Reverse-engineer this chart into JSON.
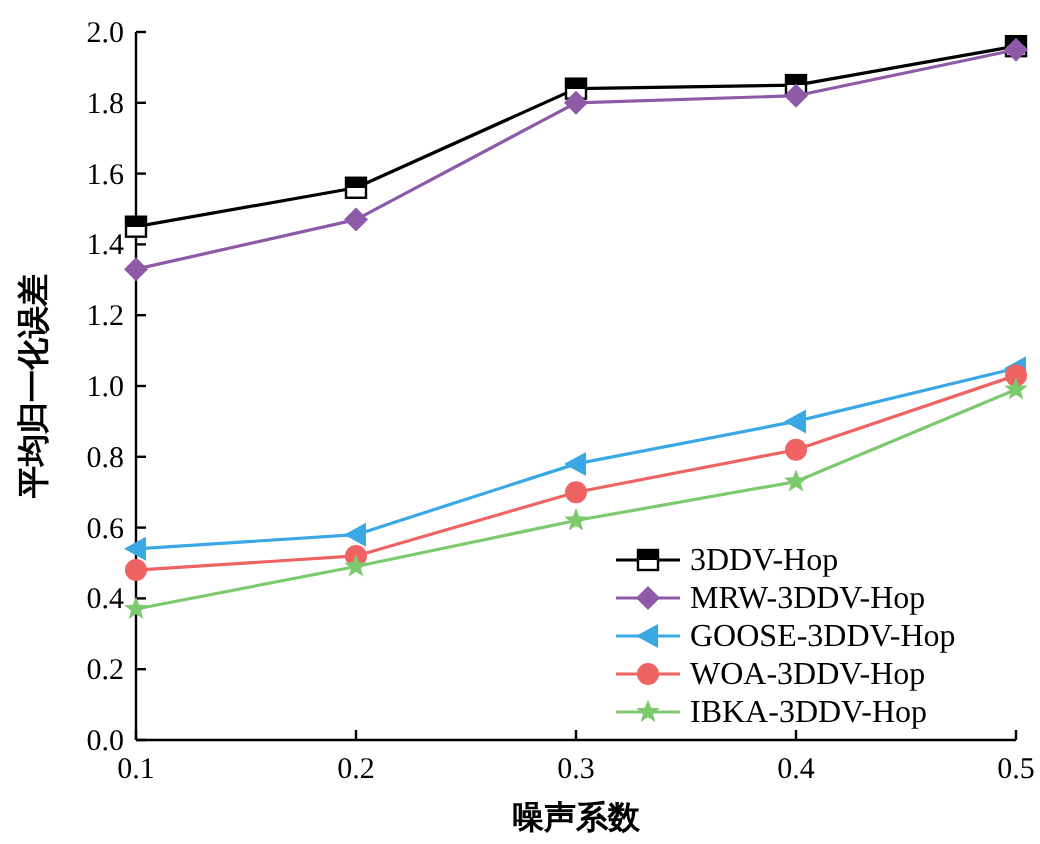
{
  "chart_data": {
    "type": "line",
    "xlabel": "噪声系数",
    "ylabel": "平均归一化误差",
    "x": [
      0.1,
      0.2,
      0.3,
      0.4,
      0.5
    ],
    "series": [
      {
        "name": "3DDV-Hop",
        "color": "#000000",
        "marker": "square",
        "values": [
          1.45,
          1.56,
          1.84,
          1.85,
          1.96
        ]
      },
      {
        "name": "MRW-3DDV-Hop",
        "color": "#8e5aa8",
        "marker": "diamond",
        "values": [
          1.33,
          1.47,
          1.8,
          1.82,
          1.95
        ]
      },
      {
        "name": "GOOSE-3DDV-Hop",
        "color": "#3ba8e6",
        "marker": "triangle",
        "values": [
          0.54,
          0.58,
          0.78,
          0.9,
          1.05
        ]
      },
      {
        "name": "WOA-3DDV-Hop",
        "color": "#ef6363",
        "marker": "circle",
        "values": [
          0.48,
          0.52,
          0.7,
          0.82,
          1.03
        ]
      },
      {
        "name": "IBKA-3DDV-Hop",
        "color": "#7cc96e",
        "marker": "star",
        "values": [
          0.37,
          0.49,
          0.62,
          0.73,
          0.99
        ]
      }
    ],
    "xlim": [
      0.1,
      0.5
    ],
    "xticks": [
      0.1,
      0.2,
      0.3,
      0.4,
      0.5
    ],
    "ylim": [
      0,
      2.0
    ],
    "yticks": [
      {
        "value": 0,
        "label": "0.0"
      },
      {
        "value": 0.2,
        "label": "0.2"
      },
      {
        "value": 0.4,
        "label": "0.4"
      },
      {
        "value": 0.6,
        "label": "0.6"
      },
      {
        "value": 0.8,
        "label": "0.8"
      },
      {
        "value": 1.0,
        "label": "1.0"
      },
      {
        "value": 1.2,
        "label": "1.2"
      },
      {
        "value": 1.4,
        "label": "1.4"
      },
      {
        "value": 1.6,
        "label": "1.6"
      },
      {
        "value": 1.8,
        "label": "1.8"
      },
      {
        "value": 2.0,
        "label": "2.0"
      }
    ],
    "grid": false,
    "legend": "bottom right",
    "line_style": "solid"
  }
}
